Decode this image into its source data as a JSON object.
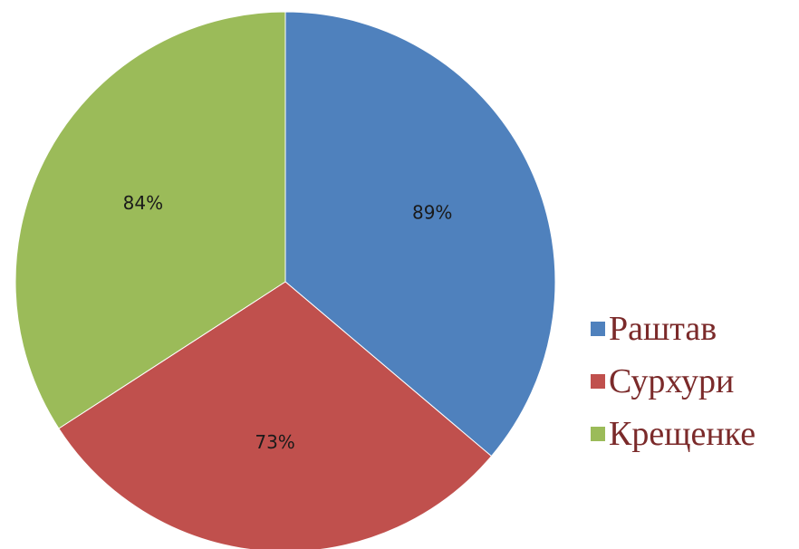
{
  "chart_data": {
    "type": "pie",
    "categories": [
      "Раштав",
      "Сурхури",
      "Крещенке"
    ],
    "values": [
      89,
      73,
      84
    ],
    "data_labels": [
      "89%",
      "73%",
      "84%"
    ],
    "colors": [
      "#4f81bd",
      "#c0504d",
      "#9bbb59"
    ],
    "legend_position": "right",
    "start": "top",
    "direction": "clockwise"
  }
}
